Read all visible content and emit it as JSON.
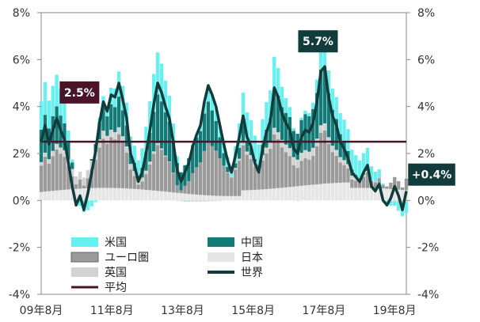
{
  "chart_data": {
    "type": "bar",
    "xlabels": [
      "09年8月",
      "11年8月",
      "13年8月",
      "15年8月",
      "17年8月",
      "19年8月"
    ],
    "ylim": [
      -4,
      8
    ],
    "yticks": [
      "-4%",
      "-2%",
      "0%",
      "2%",
      "4%",
      "6%",
      "8%"
    ],
    "yticks_right": [
      "-4%",
      "-2%",
      "0%",
      "2%",
      "4%",
      "6%",
      "8%"
    ],
    "grid": false,
    "legend_position": "bottom-left",
    "colors": {
      "us": "#66f0f0",
      "china": "#127a77",
      "euro": "#9a9a9a",
      "japan": "#e6e6e6",
      "uk": "#d2d2d2",
      "world": "#123c3c",
      "average": "#4a1428"
    },
    "series": [
      {
        "name": "米国",
        "key": "us"
      },
      {
        "name": "中国",
        "key": "china"
      },
      {
        "name": "ユーロ圏",
        "key": "euro"
      },
      {
        "name": "日本",
        "key": "japan"
      },
      {
        "name": "英国",
        "key": "uk"
      },
      {
        "name": "平均",
        "key": "average"
      },
      {
        "name": "世界",
        "key": "world"
      }
    ],
    "world_line": {
      "start": "2009-08",
      "values": [
        2.5,
        3.2,
        2.4,
        3.0,
        3.5,
        3.0,
        2.6,
        1.6,
        0.6,
        -0.2,
        0.2,
        -0.4,
        0.3,
        1.2,
        2.1,
        3.3,
        4.2,
        3.8,
        4.5,
        4.4,
        5.0,
        4.3,
        3.5,
        2.0,
        1.5,
        0.8,
        1.2,
        2.0,
        3.0,
        4.1,
        5.0,
        4.6,
        4.0,
        3.5,
        2.5,
        1.3,
        0.8,
        1.2,
        1.6,
        2.3,
        2.8,
        3.2,
        4.2,
        4.9,
        4.5,
        4.0,
        3.2,
        2.4,
        1.7,
        1.2,
        1.9,
        2.7,
        3.6,
        2.7,
        2.3,
        1.6,
        1.2,
        2.2,
        2.9,
        3.4,
        4.8,
        4.4,
        3.7,
        3.3,
        3.0,
        2.2,
        2.0,
        2.7,
        3.0,
        2.9,
        3.3,
        4.2,
        5.5,
        5.7,
        4.4,
        3.6,
        3.2,
        2.5,
        2.2,
        1.8,
        1.2,
        1.0,
        0.8,
        1.2,
        1.5,
        0.6,
        0.4,
        0.7,
        0.0,
        -0.2,
        0.1,
        0.6,
        0.2,
        -0.4,
        0.4
      ]
    },
    "average": {
      "value": 2.5,
      "label": "2.5%"
    },
    "callouts": [
      {
        "key": "peak",
        "label": "5.7%",
        "x_date": "2017-06",
        "y": 5.7
      },
      {
        "key": "avg",
        "label": "2.5%",
        "x_date": "2010-09",
        "y": 2.5
      },
      {
        "key": "last",
        "label": "+0.4%",
        "x_date": "2019-12",
        "y": 0.4
      }
    ],
    "legend": {
      "col1": [
        "米国",
        "ユーロ圏",
        "英国",
        "平均"
      ],
      "col2": [
        "中国",
        "日本",
        "世界"
      ]
    }
  }
}
